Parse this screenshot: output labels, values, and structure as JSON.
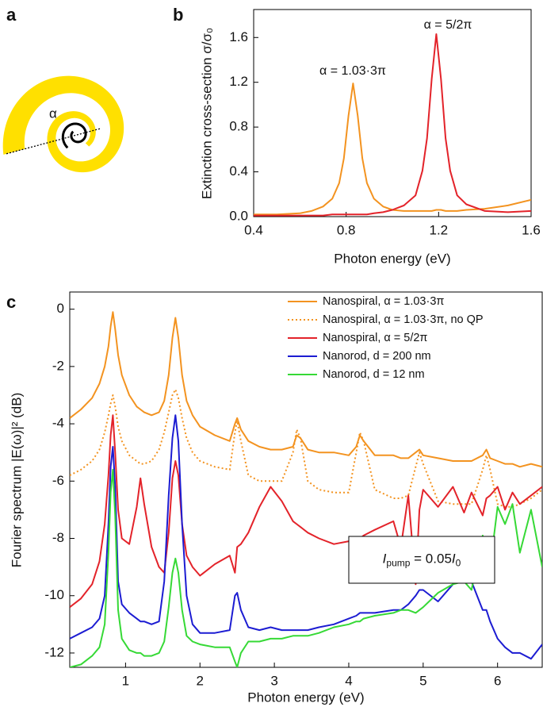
{
  "diagram": {
    "panel_label": "a",
    "angle_label": "α"
  },
  "chart_data": [
    {
      "type": "line",
      "panel_label": "b",
      "x_label": "Photon energy (eV)",
      "y_label": "Extinction cross-section σ/σ₀",
      "annotations": [
        "α = 1.03·3π",
        "α = 5/2π"
      ],
      "xlim": [
        0.4,
        1.6
      ],
      "xticks": [
        0.4,
        0.8,
        1.2,
        1.6
      ],
      "ylim": [
        0,
        1.85
      ],
      "yticks": [
        {
          "value": 0,
          "label": "0.0"
        },
        0.4,
        0.8,
        1.2,
        1.6
      ],
      "x": [
        0.4,
        0.5,
        0.6,
        0.65,
        0.7,
        0.74,
        0.77,
        0.79,
        0.81,
        0.83,
        0.85,
        0.87,
        0.89,
        0.92,
        0.96,
        1.0,
        1.05,
        1.1,
        1.13,
        1.15,
        1.17,
        1.19,
        1.21,
        1.23,
        1.25,
        1.28,
        1.32,
        1.4,
        1.5,
        1.6
      ],
      "series": [
        {
          "color": "#f39320",
          "values": [
            0.02,
            0.02,
            0.03,
            0.05,
            0.09,
            0.16,
            0.3,
            0.52,
            0.9,
            1.19,
            0.9,
            0.52,
            0.3,
            0.16,
            0.09,
            0.06,
            0.05,
            0.05,
            0.05,
            0.05,
            0.05,
            0.06,
            0.06,
            0.05,
            0.05,
            0.05,
            0.06,
            0.07,
            0.1,
            0.15
          ]
        },
        {
          "color": "#e3232a",
          "values": [
            0.01,
            0.01,
            0.01,
            0.01,
            0.01,
            0.02,
            0.02,
            0.02,
            0.02,
            0.02,
            0.02,
            0.02,
            0.02,
            0.03,
            0.04,
            0.06,
            0.1,
            0.19,
            0.41,
            0.7,
            1.23,
            1.63,
            1.23,
            0.7,
            0.41,
            0.19,
            0.11,
            0.05,
            0.04,
            0.05
          ]
        }
      ]
    },
    {
      "type": "line",
      "panel_label": "c",
      "legend": true,
      "x_label": "Photon energy (eV)",
      "y_label": "Fourier spectrum |E(ω)|² (dB)",
      "inset": [
        "I",
        "pump",
        " = 0.05",
        "I",
        "0"
      ],
      "xlim": [
        0.25,
        6.6
      ],
      "xticks": [
        1,
        2,
        3,
        4,
        5,
        6
      ],
      "ylim": [
        -12.5,
        0.6
      ],
      "yticks": [
        0,
        -2,
        -4,
        -6,
        -8,
        -10,
        -12
      ],
      "x": [
        0.25,
        0.4,
        0.55,
        0.65,
        0.72,
        0.77,
        0.8,
        0.83,
        0.86,
        0.9,
        0.95,
        1.05,
        1.15,
        1.2,
        1.25,
        1.35,
        1.45,
        1.52,
        1.58,
        1.63,
        1.67,
        1.71,
        1.76,
        1.82,
        1.9,
        2.0,
        2.2,
        2.4,
        2.47,
        2.5,
        2.55,
        2.65,
        2.8,
        2.95,
        3.1,
        3.25,
        3.3,
        3.35,
        3.45,
        3.6,
        3.8,
        4.0,
        4.1,
        4.15,
        4.2,
        4.35,
        4.6,
        4.7,
        4.8,
        4.9,
        4.95,
        5.0,
        5.2,
        5.4,
        5.55,
        5.65,
        5.8,
        5.85,
        5.9,
        6.0,
        6.1,
        6.2,
        6.3,
        6.45,
        6.6
      ],
      "series": [
        {
          "name": "Nanospiral, α = 1.03·3π",
          "color": "#f39320",
          "values": [
            -3.8,
            -3.5,
            -3.1,
            -2.6,
            -2.0,
            -1.3,
            -0.6,
            -0.1,
            -0.7,
            -1.6,
            -2.3,
            -3.0,
            -3.4,
            -3.5,
            -3.6,
            -3.7,
            -3.6,
            -3.2,
            -2.3,
            -1.0,
            -0.3,
            -1.0,
            -2.3,
            -3.2,
            -3.7,
            -4.1,
            -4.4,
            -4.6,
            -4.0,
            -3.8,
            -4.2,
            -4.6,
            -4.8,
            -4.9,
            -4.9,
            -4.8,
            -4.4,
            -4.5,
            -4.9,
            -5.0,
            -5.0,
            -5.1,
            -4.8,
            -4.4,
            -4.6,
            -5.1,
            -5.1,
            -5.2,
            -5.2,
            -5.0,
            -4.9,
            -5.1,
            -5.2,
            -5.3,
            -5.3,
            -5.3,
            -5.1,
            -4.9,
            -5.2,
            -5.3,
            -5.4,
            -5.4,
            -5.5,
            -5.4,
            -5.5
          ]
        },
        {
          "name": "Nanospiral, α = 1.03·3π, no QP",
          "color": "#f39320",
          "dash": "dotted",
          "values": [
            -5.8,
            -5.6,
            -5.3,
            -4.9,
            -4.3,
            -3.7,
            -3.3,
            -3.0,
            -3.4,
            -4.1,
            -4.6,
            -5.1,
            -5.3,
            -5.4,
            -5.4,
            -5.3,
            -4.9,
            -4.3,
            -3.6,
            -3.0,
            -2.8,
            -3.1,
            -3.8,
            -4.5,
            -5.0,
            -5.3,
            -5.5,
            -5.6,
            -4.3,
            -3.9,
            -4.6,
            -5.8,
            -6.0,
            -6.0,
            -6.0,
            -5.0,
            -4.2,
            -4.5,
            -6.0,
            -6.3,
            -6.4,
            -6.4,
            -5.0,
            -4.3,
            -4.6,
            -6.3,
            -6.6,
            -6.6,
            -6.5,
            -5.5,
            -5.0,
            -5.4,
            -6.7,
            -6.8,
            -6.8,
            -6.8,
            -5.6,
            -5.1,
            -5.6,
            -6.8,
            -6.9,
            -6.9,
            -6.8,
            -6.6,
            -6.3
          ]
        },
        {
          "name": "Nanospiral, α = 5/2π",
          "color": "#e3232a",
          "values": [
            -10.4,
            -10.1,
            -9.6,
            -8.8,
            -7.5,
            -5.8,
            -4.4,
            -3.7,
            -5.0,
            -7.0,
            -8.0,
            -8.2,
            -6.9,
            -5.9,
            -6.8,
            -8.3,
            -9.0,
            -9.2,
            -7.8,
            -5.9,
            -5.3,
            -5.8,
            -7.5,
            -8.6,
            -9.0,
            -9.3,
            -8.9,
            -8.6,
            -9.2,
            -8.3,
            -8.2,
            -7.8,
            -6.9,
            -6.2,
            -6.7,
            -7.4,
            -7.5,
            -7.6,
            -7.8,
            -8.0,
            -8.2,
            -8.1,
            -8.0,
            -8.0,
            -7.9,
            -7.7,
            -7.4,
            -8.3,
            -6.5,
            -9.6,
            -7.0,
            -6.3,
            -6.9,
            -6.2,
            -7.1,
            -6.4,
            -7.2,
            -6.6,
            -6.5,
            -6.2,
            -7.0,
            -6.4,
            -6.8,
            -6.5,
            -6.2
          ]
        },
        {
          "name": "Nanorod, d = 200 nm",
          "color": "#1c1cd2",
          "values": [
            -11.5,
            -11.3,
            -11.1,
            -10.8,
            -10.0,
            -7.5,
            -5.5,
            -4.8,
            -6.2,
            -9.5,
            -10.3,
            -10.6,
            -10.8,
            -10.9,
            -10.9,
            -11.0,
            -10.9,
            -9.5,
            -6.5,
            -4.5,
            -3.7,
            -4.6,
            -7.5,
            -10.0,
            -11.0,
            -11.3,
            -11.3,
            -11.2,
            -10.0,
            -9.9,
            -10.5,
            -11.1,
            -11.2,
            -11.1,
            -11.2,
            -11.2,
            -11.2,
            -11.2,
            -11.2,
            -11.1,
            -11.0,
            -10.8,
            -10.7,
            -10.6,
            -10.6,
            -10.6,
            -10.5,
            -10.5,
            -10.3,
            -10.0,
            -9.8,
            -9.8,
            -10.2,
            -9.6,
            -8.9,
            -9.5,
            -10.5,
            -10.5,
            -10.9,
            -11.5,
            -11.8,
            -12.0,
            -12.0,
            -12.2,
            -11.7
          ]
        },
        {
          "name": "Nanorod, d = 12 nm",
          "color": "#36d936",
          "values": [
            -12.5,
            -12.4,
            -12.1,
            -11.8,
            -11.0,
            -8.5,
            -6.4,
            -5.6,
            -7.2,
            -10.5,
            -11.5,
            -11.9,
            -12.0,
            -12.0,
            -12.1,
            -12.1,
            -12.0,
            -11.6,
            -10.4,
            -9.2,
            -8.7,
            -9.2,
            -10.5,
            -11.4,
            -11.6,
            -11.7,
            -11.8,
            -11.8,
            -12.3,
            -12.5,
            -12.0,
            -11.6,
            -11.6,
            -11.5,
            -11.5,
            -11.4,
            -11.4,
            -11.4,
            -11.4,
            -11.3,
            -11.1,
            -11.0,
            -10.9,
            -10.9,
            -10.8,
            -10.7,
            -10.6,
            -10.5,
            -10.5,
            -10.6,
            -10.5,
            -10.4,
            -9.9,
            -9.6,
            -9.5,
            -9.8,
            -7.9,
            -8.6,
            -9.0,
            -6.9,
            -7.5,
            -6.8,
            -8.5,
            -7.0,
            -9.0
          ]
        }
      ]
    }
  ]
}
